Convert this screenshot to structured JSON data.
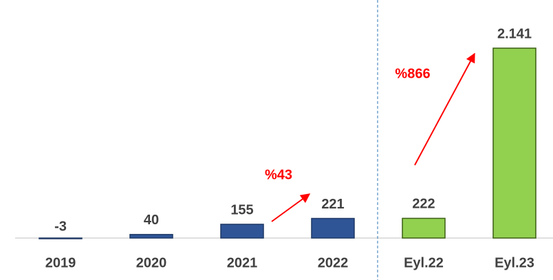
{
  "chart_data": {
    "type": "bar",
    "categories": [
      "2019",
      "2020",
      "2021",
      "2022",
      "Eyl.22",
      "Eyl.23"
    ],
    "values": [
      -3,
      40,
      155,
      221,
      222,
      2141
    ],
    "value_labels": [
      "-3",
      "40",
      "155",
      "221",
      "222",
      "2.141"
    ],
    "colors": [
      "#2f5597",
      "#2f5597",
      "#2f5597",
      "#2f5597",
      "#92d050",
      "#92d050"
    ],
    "annotations": [
      "%43",
      "%866"
    ]
  }
}
